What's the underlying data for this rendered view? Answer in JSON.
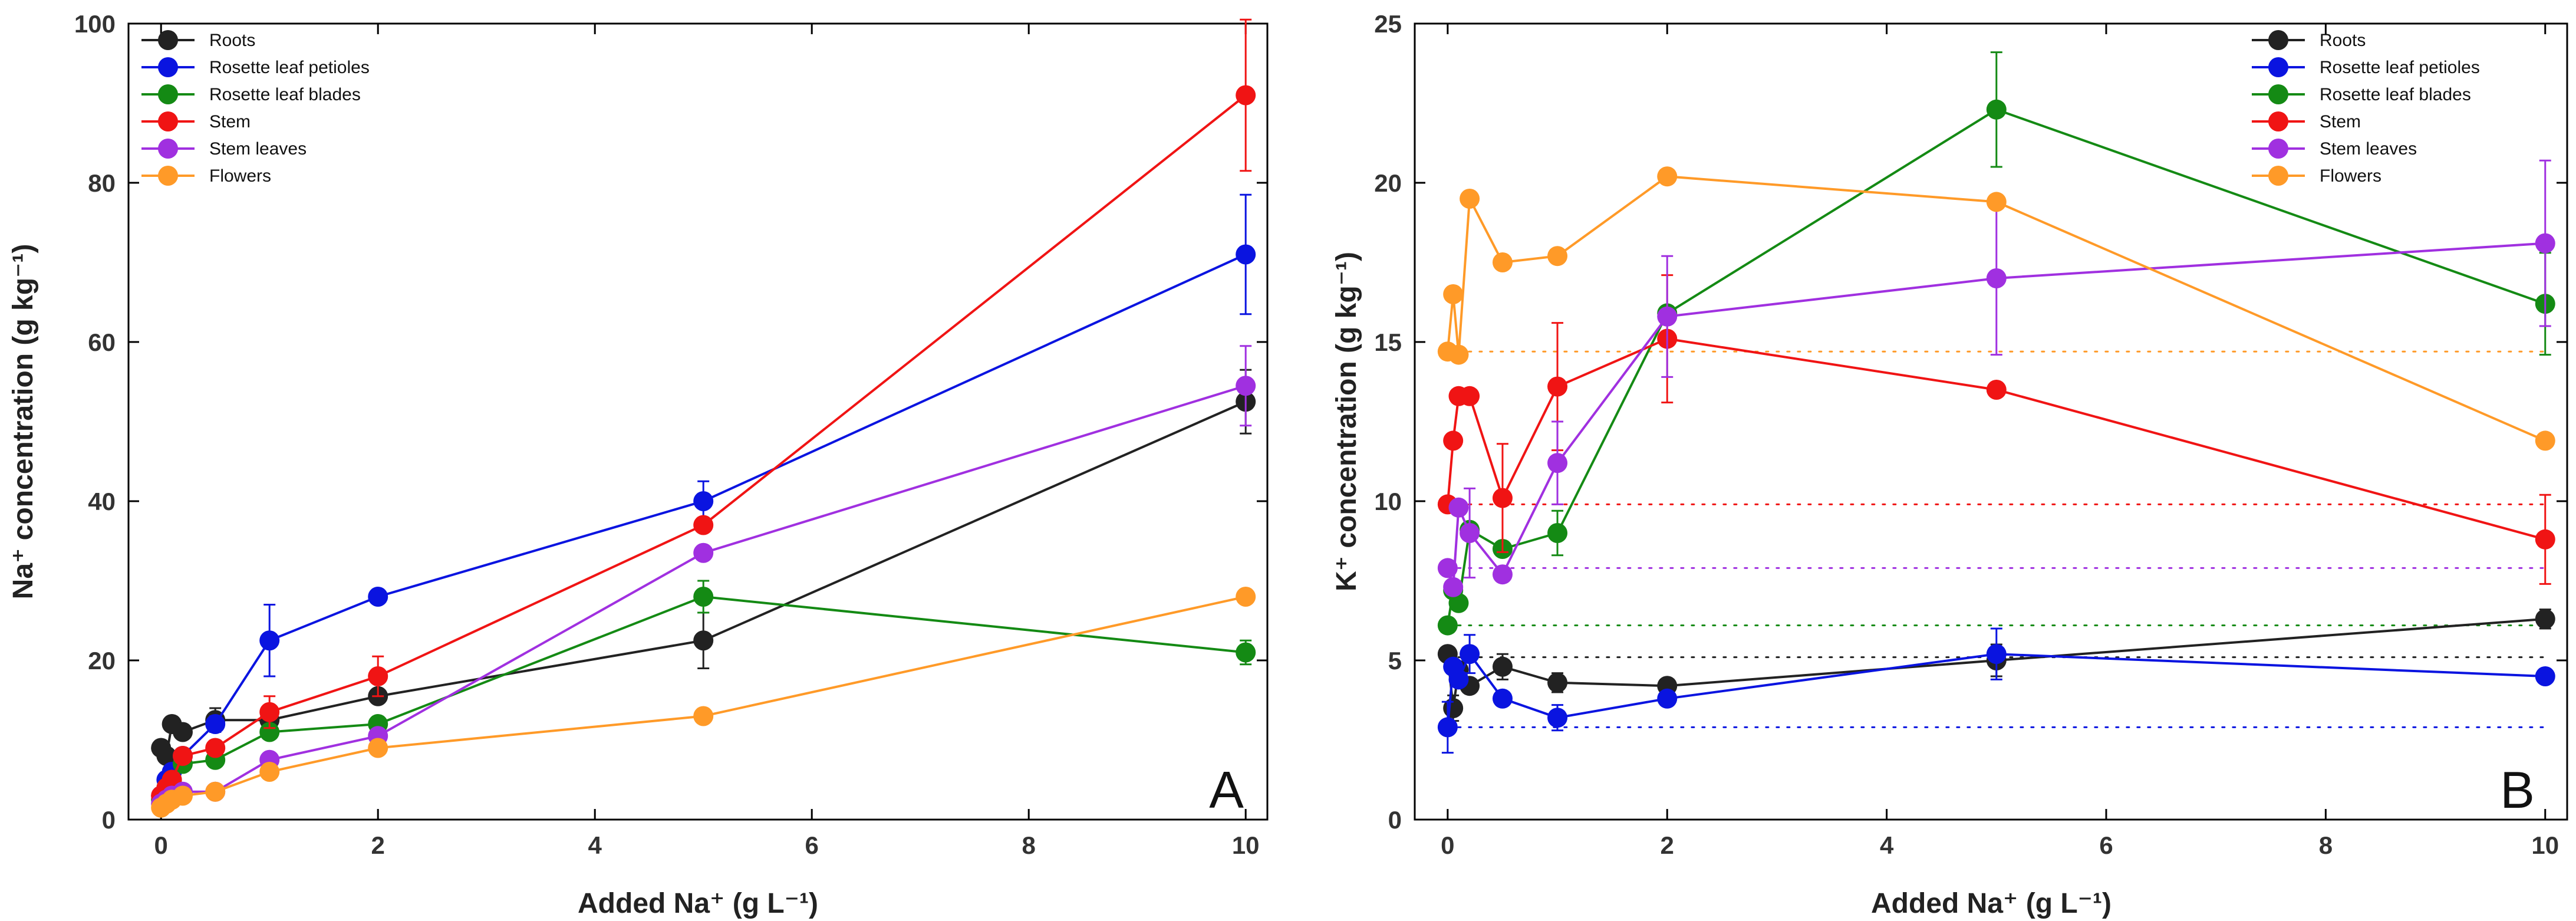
{
  "colors": {
    "Roots": "#222222",
    "Rosette leaf petioles": "#0a14e0",
    "Rosette leaf blades": "#148a14",
    "Stem": "#f01414",
    "Stem leaves": "#a030e0",
    "Flowers": "#ff9a28"
  },
  "chart_data": [
    {
      "type": "line",
      "panel_label": "A",
      "xlabel": "Added Na⁺ (g L⁻¹)",
      "ylabel": "Na⁺ concentration (g kg⁻¹)",
      "xlim": [
        -0.3,
        10.2
      ],
      "ylim": [
        0,
        100
      ],
      "xticks": [
        "0",
        "2",
        "4",
        "6",
        "8",
        "10"
      ],
      "yticks": [
        "0",
        "20",
        "40",
        "60",
        "80",
        "100"
      ],
      "legend_position": "top-left",
      "series": [
        {
          "name": "Roots",
          "x": [
            0,
            0.05,
            0.1,
            0.2,
            0.5,
            1,
            2,
            5,
            10
          ],
          "y": [
            9,
            8,
            12,
            11,
            12.5,
            12.5,
            15.5,
            22.5,
            52.5
          ],
          "err": [
            0,
            0,
            0,
            0,
            1.5,
            0,
            0,
            3.5,
            4
          ]
        },
        {
          "name": "Rosette leaf petioles",
          "x": [
            0,
            0.05,
            0.1,
            0.2,
            0.5,
            1,
            2,
            5,
            10
          ],
          "y": [
            3,
            5,
            6,
            8,
            12,
            22.5,
            28,
            40,
            71
          ],
          "err": [
            0,
            0,
            0,
            0,
            1,
            4.5,
            0,
            2.5,
            7.5
          ]
        },
        {
          "name": "Rosette leaf blades",
          "x": [
            0,
            0.05,
            0.1,
            0.2,
            0.5,
            1,
            2,
            5,
            10
          ],
          "y": [
            2.5,
            4,
            5,
            7,
            7.5,
            11,
            12,
            28,
            21
          ],
          "err": [
            0,
            0,
            0,
            0,
            0,
            0,
            0,
            2,
            1.5
          ]
        },
        {
          "name": "Stem",
          "x": [
            0,
            0.05,
            0.1,
            0.2,
            0.5,
            1,
            2,
            5,
            10
          ],
          "y": [
            3,
            4,
            5,
            8,
            9,
            13.5,
            18,
            37,
            91
          ],
          "err": [
            0,
            0,
            0,
            0,
            0,
            2,
            2.5,
            0,
            9.5
          ]
        },
        {
          "name": "Stem leaves",
          "x": [
            0,
            0.05,
            0.1,
            0.2,
            0.5,
            1,
            2,
            5,
            10
          ],
          "y": [
            2,
            2.5,
            3,
            3.5,
            3.5,
            7.5,
            10.5,
            33.5,
            54.5
          ],
          "err": [
            0,
            0,
            0,
            0,
            0,
            0,
            0,
            0,
            5
          ]
        },
        {
          "name": "Flowers",
          "x": [
            0,
            0.05,
            0.1,
            0.2,
            0.5,
            1,
            2,
            5,
            10
          ],
          "y": [
            1.5,
            2,
            2.5,
            3,
            3.5,
            6,
            9,
            13,
            28
          ],
          "err": [
            0,
            0,
            0,
            0,
            0,
            0,
            0,
            0,
            0
          ]
        }
      ]
    },
    {
      "type": "line",
      "panel_label": "B",
      "xlabel": "Added Na⁺ (g L⁻¹)",
      "ylabel": "K⁺ concentration (g kg⁻¹)",
      "xlim": [
        -0.3,
        10.2
      ],
      "ylim": [
        0,
        25
      ],
      "xticks": [
        "0",
        "2",
        "4",
        "6",
        "8",
        "10"
      ],
      "yticks": [
        "0",
        "5",
        "10",
        "15",
        "20",
        "25"
      ],
      "legend_position": "top-right",
      "series": [
        {
          "name": "Roots",
          "x": [
            0,
            0.05,
            0.1,
            0.2,
            0.5,
            1,
            2,
            5,
            10
          ],
          "y": [
            5.2,
            3.5,
            4.7,
            4.2,
            4.8,
            4.3,
            4.2,
            5.0,
            6.3
          ],
          "err": [
            0,
            0.4,
            0,
            0,
            0.4,
            0.3,
            0,
            0.5,
            0.3
          ],
          "baseline": 5.1
        },
        {
          "name": "Rosette leaf petioles",
          "x": [
            0,
            0.05,
            0.1,
            0.2,
            0.5,
            1,
            2,
            5,
            10
          ],
          "y": [
            2.9,
            4.8,
            4.4,
            5.2,
            3.8,
            3.2,
            3.8,
            5.2,
            4.5
          ],
          "err": [
            0.8,
            0,
            0,
            0.6,
            0,
            0.4,
            0,
            0.8,
            0
          ],
          "baseline": 2.9
        },
        {
          "name": "Rosette leaf blades",
          "x": [
            0,
            0.05,
            0.1,
            0.2,
            0.5,
            1,
            2,
            5,
            10
          ],
          "y": [
            6.1,
            7.2,
            6.8,
            9.1,
            8.5,
            9.0,
            15.9,
            22.3,
            16.2
          ],
          "err": [
            0,
            0,
            0,
            0,
            0,
            0.7,
            0,
            1.8,
            1.6
          ],
          "baseline": 6.1
        },
        {
          "name": "Stem",
          "x": [
            0,
            0.05,
            0.1,
            0.2,
            0.5,
            1,
            2,
            5,
            10
          ],
          "y": [
            9.9,
            11.9,
            13.3,
            13.3,
            10.1,
            13.6,
            15.1,
            13.5,
            8.8
          ],
          "err": [
            0,
            0,
            0,
            0,
            1.7,
            2.0,
            2.0,
            0,
            1.4
          ],
          "baseline": 9.9
        },
        {
          "name": "Stem leaves",
          "x": [
            0,
            0.05,
            0.1,
            0.2,
            0.5,
            1,
            2,
            5,
            10
          ],
          "y": [
            7.9,
            7.3,
            9.8,
            9.0,
            7.7,
            11.2,
            15.8,
            17.0,
            18.1
          ],
          "err": [
            0,
            0,
            0,
            1.4,
            0,
            1.3,
            1.9,
            2.4,
            2.6
          ],
          "baseline": 7.9
        },
        {
          "name": "Flowers",
          "x": [
            0,
            0.05,
            0.1,
            0.2,
            0.5,
            1,
            2,
            5,
            10
          ],
          "y": [
            14.7,
            16.5,
            14.6,
            19.5,
            17.5,
            17.7,
            20.2,
            19.4,
            11.9
          ],
          "err": [
            0,
            0,
            0,
            0,
            0,
            0,
            0,
            0,
            0
          ],
          "baseline": 14.7
        }
      ]
    }
  ]
}
